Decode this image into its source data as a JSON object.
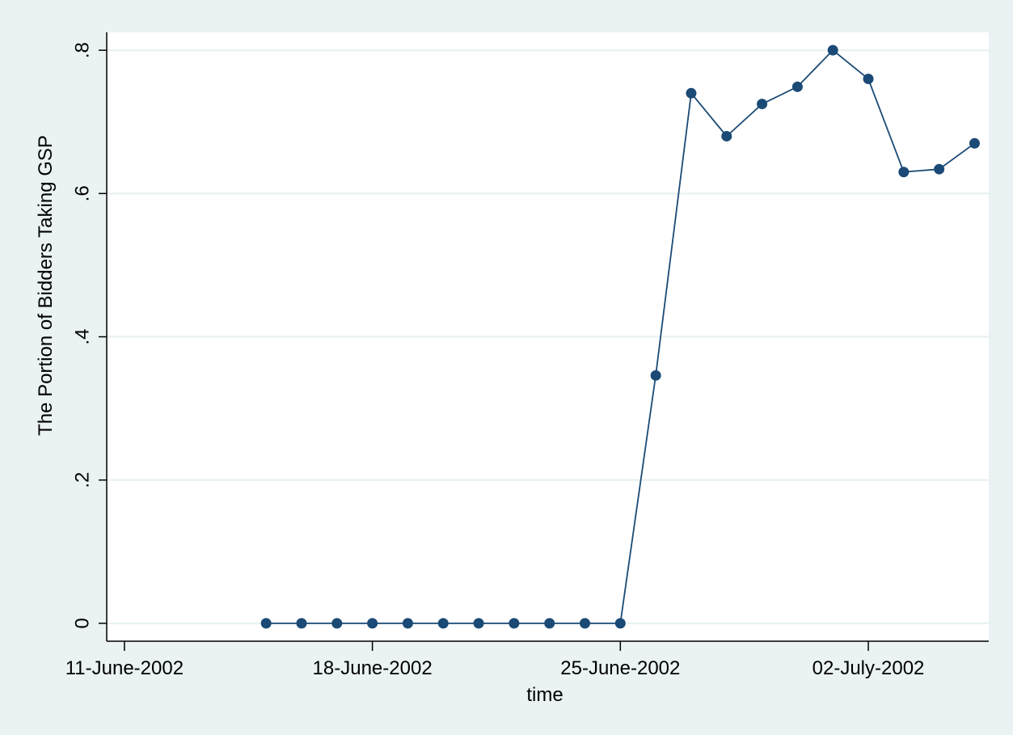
{
  "chart_data": {
    "type": "line",
    "title": "",
    "xlabel": "time",
    "ylabel": "The Portion of Bidders Taking GSP",
    "x_ticks": [
      "11-June-2002",
      "18-June-2002",
      "25-June-2002",
      "02-July-2002"
    ],
    "y_ticks": [
      "0",
      ".2",
      ".4",
      ".6",
      ".8"
    ],
    "y_tick_values": [
      0,
      0.2,
      0.4,
      0.6,
      0.8
    ],
    "xlim": [
      "2002-06-11",
      "2002-07-05"
    ],
    "ylim": [
      -0.025,
      0.825
    ],
    "grid": true,
    "legend": "none",
    "series": [
      {
        "x": [
          "2002-06-15",
          "2002-06-16",
          "2002-06-17",
          "2002-06-18",
          "2002-06-19",
          "2002-06-20",
          "2002-06-21",
          "2002-06-22",
          "2002-06-23",
          "2002-06-24",
          "2002-06-25",
          "2002-06-26",
          "2002-06-27",
          "2002-06-28",
          "2002-06-29",
          "2002-06-30",
          "2002-07-01",
          "2002-07-02",
          "2002-07-03",
          "2002-07-04",
          "2002-07-05"
        ],
        "y": [
          0,
          0,
          0,
          0,
          0,
          0,
          0,
          0,
          0,
          0,
          0,
          0.346,
          0.74,
          0.68,
          0.725,
          0.749,
          0.8,
          0.76,
          0.63,
          0.634,
          0.67
        ]
      }
    ],
    "colors": {
      "background": "#eaf2f3",
      "plot": "#ffffff",
      "grid": "#eaf2f3",
      "line": "#1a4a75",
      "marker": "#1a4a75",
      "axis": "#000000"
    }
  }
}
